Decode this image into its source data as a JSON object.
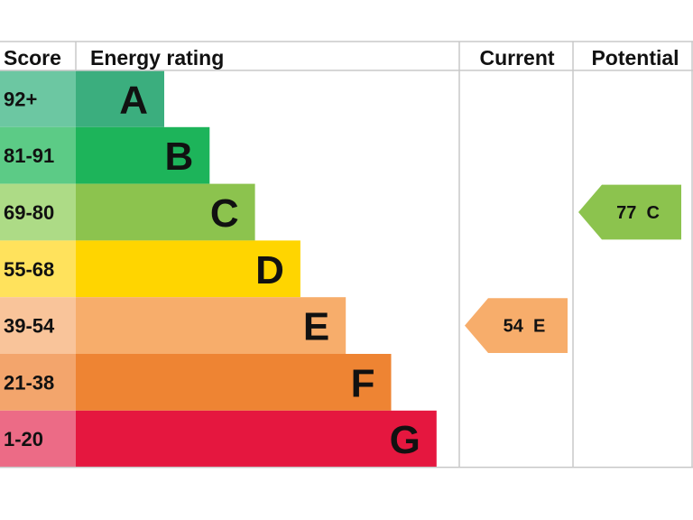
{
  "chart_data": {
    "type": "table",
    "headers": {
      "score": "Score",
      "rating": "Energy rating",
      "current": "Current",
      "potential": "Potential"
    },
    "bands": [
      {
        "letter": "A",
        "range": "92+",
        "color": "#3bae7e",
        "score_bg": "#6cc7a2"
      },
      {
        "letter": "B",
        "range": "81-91",
        "color": "#1db45a",
        "score_bg": "#5ccb86"
      },
      {
        "letter": "C",
        "range": "69-80",
        "color": "#8cc34e",
        "score_bg": "#addb86"
      },
      {
        "letter": "D",
        "range": "55-68",
        "color": "#ffd500",
        "score_bg": "#ffe25c"
      },
      {
        "letter": "E",
        "range": "39-54",
        "color": "#f7ad6b",
        "score_bg": "#f9c49a"
      },
      {
        "letter": "F",
        "range": "21-38",
        "color": "#ee8433",
        "score_bg": "#f3a56c"
      },
      {
        "letter": "G",
        "range": "1-20",
        "color": "#e5173f",
        "score_bg": "#ec6b86"
      }
    ],
    "current": {
      "value": 54,
      "letter": "E",
      "label": "54  E",
      "color": "#f7ad6b"
    },
    "potential": {
      "value": 77,
      "letter": "C",
      "label": "77  C",
      "color": "#8cc34e"
    }
  }
}
